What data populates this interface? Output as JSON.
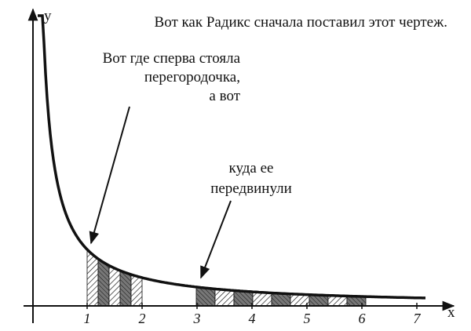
{
  "title": "Вот как Радикс сначала поставил этот чертеж.",
  "annotations": {
    "first": [
      "Вот где сперва стояла",
      "перегородочка,",
      "а вот"
    ],
    "second": [
      "куда ее",
      "передвинули"
    ]
  },
  "axes": {
    "x_label": "x",
    "y_label": "y",
    "x_ticks": [
      "1",
      "2",
      "3",
      "4",
      "5",
      "6",
      "7"
    ]
  }
}
